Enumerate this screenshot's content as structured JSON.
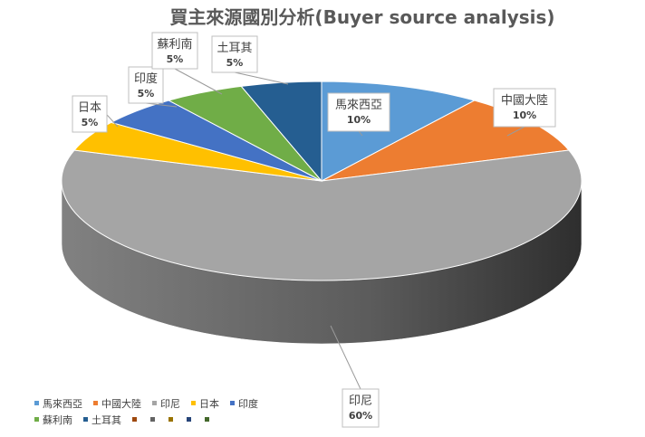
{
  "chart_data": {
    "type": "pie",
    "style": "3d",
    "title": "買主來源國別分析(Buyer source analysis)",
    "categories": [
      "馬來西亞",
      "中國大陸",
      "印尼",
      "日本",
      "印度",
      "蘇利南",
      "土耳其"
    ],
    "values": [
      10,
      10,
      60,
      5,
      5,
      5,
      5
    ],
    "value_labels": [
      "10%",
      "10%",
      "60%",
      "5%",
      "5%",
      "5%",
      "5%"
    ],
    "colors": [
      "#5b9bd5",
      "#ed7d31",
      "#a5a5a5",
      "#ffc000",
      "#4472c4",
      "#70ad47",
      "#255e91"
    ],
    "extra_legend_colors": [
      "#9e480e",
      "#636363",
      "#997300",
      "#264478",
      "#43682b"
    ],
    "legend_position": "bottom-left"
  }
}
